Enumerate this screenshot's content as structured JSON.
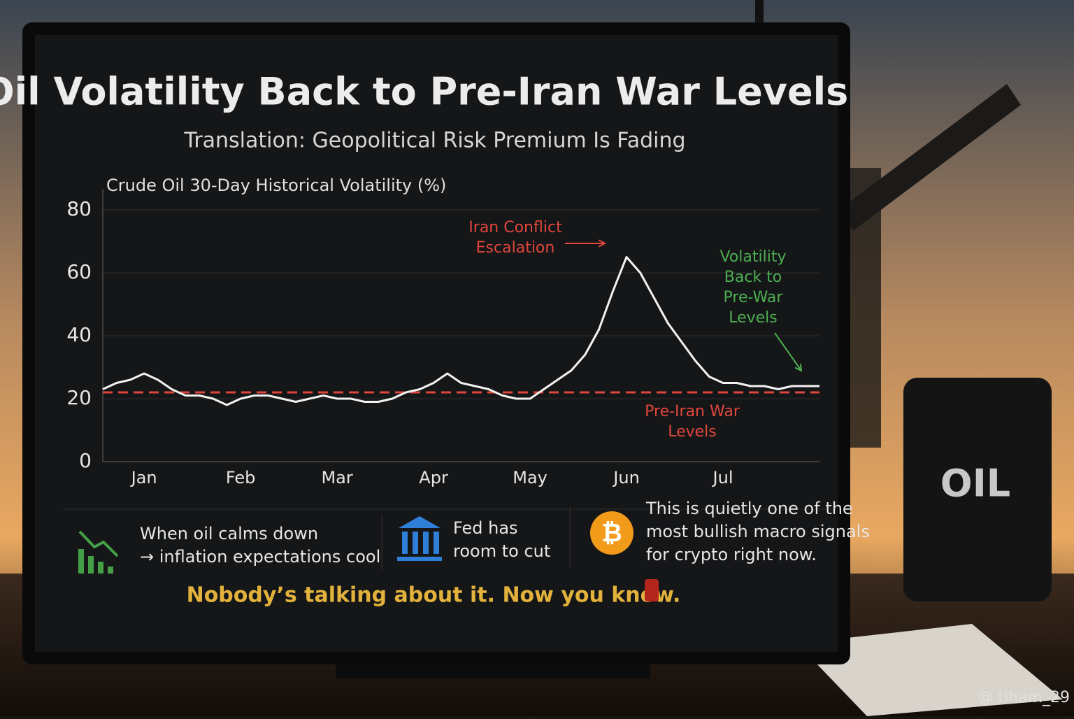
{
  "chart_data": {
    "type": "line",
    "title": "Oil Volatility Back to Pre-Iran War Levels",
    "subtitle": "Translation: Geopolitical Risk Premium Is Fading",
    "axis_title": "Crude Oil 30-Day Historical Volatility (%)",
    "categories": [
      null,
      null,
      null,
      "Jan",
      null,
      null,
      null,
      null,
      null,
      null,
      "Feb",
      null,
      null,
      null,
      null,
      null,
      null,
      "Mar",
      null,
      null,
      null,
      null,
      null,
      null,
      "Apr",
      null,
      null,
      null,
      null,
      null,
      null,
      "May",
      null,
      null,
      null,
      null,
      null,
      null,
      "Jun",
      null,
      null,
      null,
      null,
      null,
      null,
      "Jul",
      null,
      null,
      null,
      null,
      null,
      null,
      null
    ],
    "values": [
      23,
      25,
      26,
      28,
      26,
      23,
      21,
      21,
      20,
      18,
      20,
      21,
      21,
      20,
      19,
      20,
      21,
      20,
      20,
      19,
      19,
      20,
      22,
      23,
      25,
      28,
      25,
      24,
      23,
      21,
      20,
      20,
      23,
      26,
      29,
      34,
      42,
      54,
      65,
      60,
      52,
      44,
      38,
      32,
      27,
      25,
      25,
      24,
      24,
      23,
      24,
      24,
      24
    ],
    "color": "#f2f2f2",
    "ylim": [
      0,
      80
    ],
    "yticks": [
      0,
      20,
      40,
      60,
      80
    ],
    "grid": true,
    "reference_line": {
      "value": 22,
      "label": [
        "Pre-Iran War",
        "Levels"
      ],
      "color": "#e0463c"
    },
    "annotations": [
      {
        "text": [
          "Iran Conflict",
          "Escalation"
        ],
        "color": "#e0463c"
      },
      {
        "text": [
          "Volatility",
          "Back to",
          "Pre-War",
          "Levels"
        ],
        "color": "#4caf50"
      }
    ]
  },
  "insights": [
    {
      "text": [
        "When oil calms down",
        "→ inflation expectations cool"
      ]
    },
    {
      "text": [
        "Fed has",
        "room to cut"
      ]
    },
    {
      "text": [
        "This is quietly one of the",
        "most bullish macro signals",
        "for crypto right now."
      ]
    }
  ],
  "footer": "Nobody’s talking about it. Now you know.",
  "barrel_label": "OIL",
  "watermark": "@ tiham_29"
}
